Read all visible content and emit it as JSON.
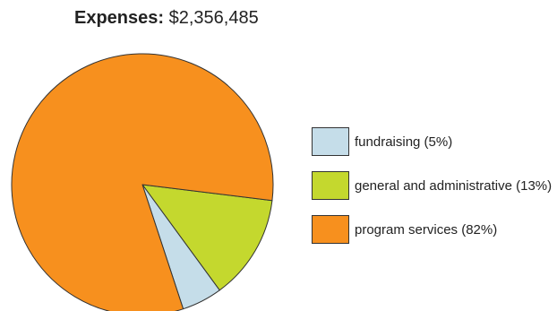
{
  "chart_data": {
    "type": "pie",
    "title": "Expenses:",
    "subtitle": "$2,356,485",
    "legend_position": "right",
    "slices": [
      {
        "label": "fundraising (5%)",
        "value": 5,
        "color": "#c5dde9"
      },
      {
        "label": "general and administrative (13%)",
        "value": 13,
        "color": "#c4d82e"
      },
      {
        "label": "program services (82%)",
        "value": 82,
        "color": "#f7901e"
      }
    ],
    "stroke_color": "#333333"
  }
}
